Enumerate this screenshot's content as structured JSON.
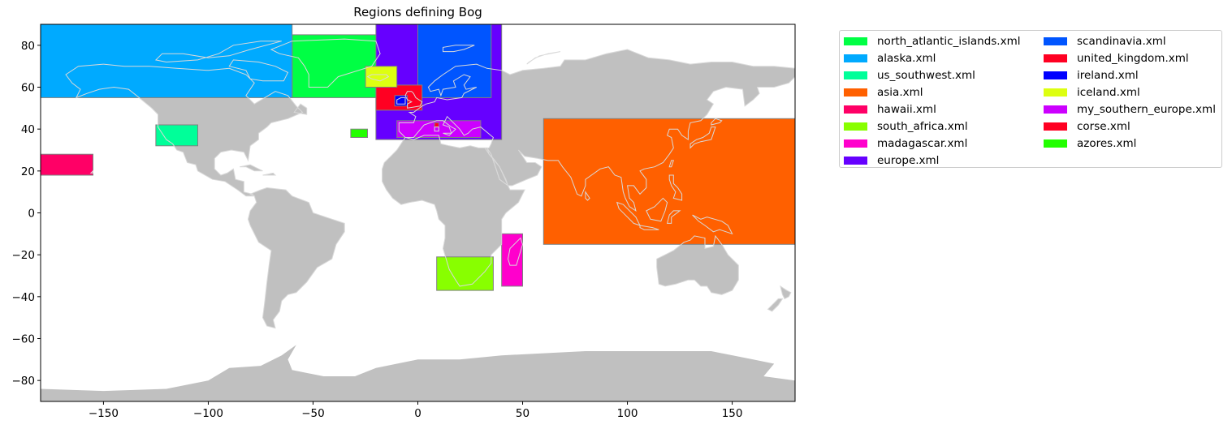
{
  "title": "Regions defining Bog",
  "map": {
    "land_color": "#c0c0c0",
    "coast_color": "#d9d9d9",
    "region_edge_color": "#808080",
    "xlim": [
      -180,
      180
    ],
    "ylim": [
      -90,
      90
    ],
    "xticks": [
      -150,
      -100,
      -50,
      0,
      50,
      100,
      150
    ],
    "yticks": [
      -80,
      -60,
      -40,
      -20,
      0,
      20,
      40,
      60,
      80
    ]
  },
  "regions": [
    {
      "name": "north_atlantic_islands.xml",
      "color": "#00ff44",
      "lon": [
        -60,
        0
      ],
      "lat": [
        55,
        85
      ]
    },
    {
      "name": "alaska.xml",
      "color": "#00aaff",
      "lon": [
        -180,
        -60
      ],
      "lat": [
        55,
        90
      ]
    },
    {
      "name": "us_southwest.xml",
      "color": "#00ff99",
      "lon": [
        -125,
        -105
      ],
      "lat": [
        32,
        42
      ]
    },
    {
      "name": "asia.xml",
      "color": "#ff6000",
      "lon": [
        60,
        180
      ],
      "lat": [
        -15,
        45
      ]
    },
    {
      "name": "hawaii.xml",
      "color": "#ff0066",
      "lon": [
        -180,
        -155
      ],
      "lat": [
        18,
        28
      ]
    },
    {
      "name": "south_africa.xml",
      "color": "#88ff00",
      "lon": [
        9,
        36
      ],
      "lat": [
        -37,
        -21
      ]
    },
    {
      "name": "madagascar.xml",
      "color": "#ff00cc",
      "lon": [
        40,
        50
      ],
      "lat": [
        -35,
        -10
      ]
    },
    {
      "name": "europe.xml",
      "color": "#6600ff",
      "lon": [
        -20,
        40
      ],
      "lat": [
        35,
        90
      ]
    },
    {
      "name": "scandinavia.xml",
      "color": "#0055ff",
      "lon": [
        0,
        35
      ],
      "lat": [
        55,
        90
      ]
    },
    {
      "name": "united_kingdom.xml",
      "color": "#ff0022",
      "lon": [
        -20,
        2
      ],
      "lat": [
        49,
        61
      ]
    },
    {
      "name": "ireland.xml",
      "color": "#0000ff",
      "lon": [
        -11,
        -5
      ],
      "lat": [
        51,
        56
      ]
    },
    {
      "name": "iceland.xml",
      "color": "#ddff11",
      "lon": [
        -25,
        -10
      ],
      "lat": [
        60,
        70
      ]
    },
    {
      "name": "my_southern_europe.xml",
      "color": "#cc00ff",
      "lon": [
        -10,
        30
      ],
      "lat": [
        36,
        44
      ]
    },
    {
      "name": "corse.xml",
      "color": "#ff0022",
      "lon": [
        8,
        10
      ],
      "lat": [
        41,
        43
      ]
    },
    {
      "name": "azores.xml",
      "color": "#22ff00",
      "lon": [
        -32,
        -24
      ],
      "lat": [
        36,
        40
      ]
    }
  ],
  "legend": {
    "columns": [
      [
        "north_atlantic_islands.xml",
        "alaska.xml",
        "us_southwest.xml",
        "asia.xml",
        "hawaii.xml",
        "south_africa.xml",
        "madagascar.xml",
        "europe.xml"
      ],
      [
        "scandinavia.xml",
        "united_kingdom.xml",
        "ireland.xml",
        "iceland.xml",
        "my_southern_europe.xml",
        "corse.xml",
        "azores.xml"
      ]
    ],
    "colors": {
      "north_atlantic_islands.xml": "#00ff44",
      "alaska.xml": "#00aaff",
      "us_southwest.xml": "#00ff99",
      "asia.xml": "#ff6000",
      "hawaii.xml": "#ff0066",
      "south_africa.xml": "#88ff00",
      "madagascar.xml": "#ff00cc",
      "europe.xml": "#6600ff",
      "scandinavia.xml": "#0055ff",
      "united_kingdom.xml": "#ff0022",
      "ireland.xml": "#0000ff",
      "iceland.xml": "#ddff11",
      "my_southern_europe.xml": "#cc00ff",
      "corse.xml": "#ff0022",
      "azores.xml": "#22ff00"
    }
  }
}
